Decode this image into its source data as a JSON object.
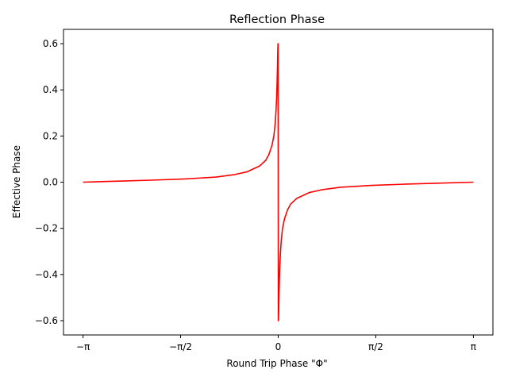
{
  "chart_data": {
    "type": "line",
    "title": "Reflection Phase",
    "xlabel": "Round Trip Phase \"Φ\"",
    "ylabel": "Effective Phase",
    "xlim": [
      -3.4558,
      3.4558
    ],
    "ylim": [
      -0.662,
      0.662
    ],
    "grid": false,
    "legend": "none",
    "x_ticks": [
      {
        "value": -3.14159,
        "label": "−π"
      },
      {
        "value": -1.5708,
        "label": "−π/2"
      },
      {
        "value": 0,
        "label": "0"
      },
      {
        "value": 1.5708,
        "label": "π/2"
      },
      {
        "value": 3.14159,
        "label": "π"
      }
    ],
    "y_ticks": [
      {
        "value": 0.6,
        "label": "0.6"
      },
      {
        "value": 0.4,
        "label": "0.4"
      },
      {
        "value": 0.2,
        "label": "0.2"
      },
      {
        "value": 0.0,
        "label": "0.0"
      },
      {
        "value": -0.2,
        "label": "−0.2"
      },
      {
        "value": -0.4,
        "label": "−0.4"
      },
      {
        "value": -0.6,
        "label": "−0.6"
      }
    ],
    "series": [
      {
        "color": "#ff0000",
        "x": [
          -3.14159,
          -2.5,
          -2.0,
          -1.5,
          -1.0,
          -0.7,
          -0.5,
          -0.3,
          -0.2,
          -0.15,
          -0.1,
          -0.07,
          -0.05,
          -0.035,
          -0.025,
          -0.018,
          -0.012,
          -0.008,
          -0.004,
          -0.002,
          0.002,
          0.004,
          0.008,
          0.012,
          0.018,
          0.025,
          0.035,
          0.05,
          0.07,
          0.1,
          0.15,
          0.2,
          0.3,
          0.5,
          0.7,
          1.0,
          1.5,
          2.0,
          2.5,
          3.14159
        ],
        "y": [
          0.0,
          0.005,
          0.009,
          0.014,
          0.022,
          0.033,
          0.045,
          0.07,
          0.095,
          0.12,
          0.16,
          0.2,
          0.25,
          0.31,
          0.37,
          0.43,
          0.5,
          0.56,
          0.6,
          0.6,
          -0.6,
          -0.6,
          -0.56,
          -0.5,
          -0.43,
          -0.37,
          -0.31,
          -0.25,
          -0.2,
          -0.16,
          -0.12,
          -0.095,
          -0.07,
          -0.045,
          -0.033,
          -0.022,
          -0.014,
          -0.009,
          -0.005,
          0.0
        ]
      }
    ]
  }
}
